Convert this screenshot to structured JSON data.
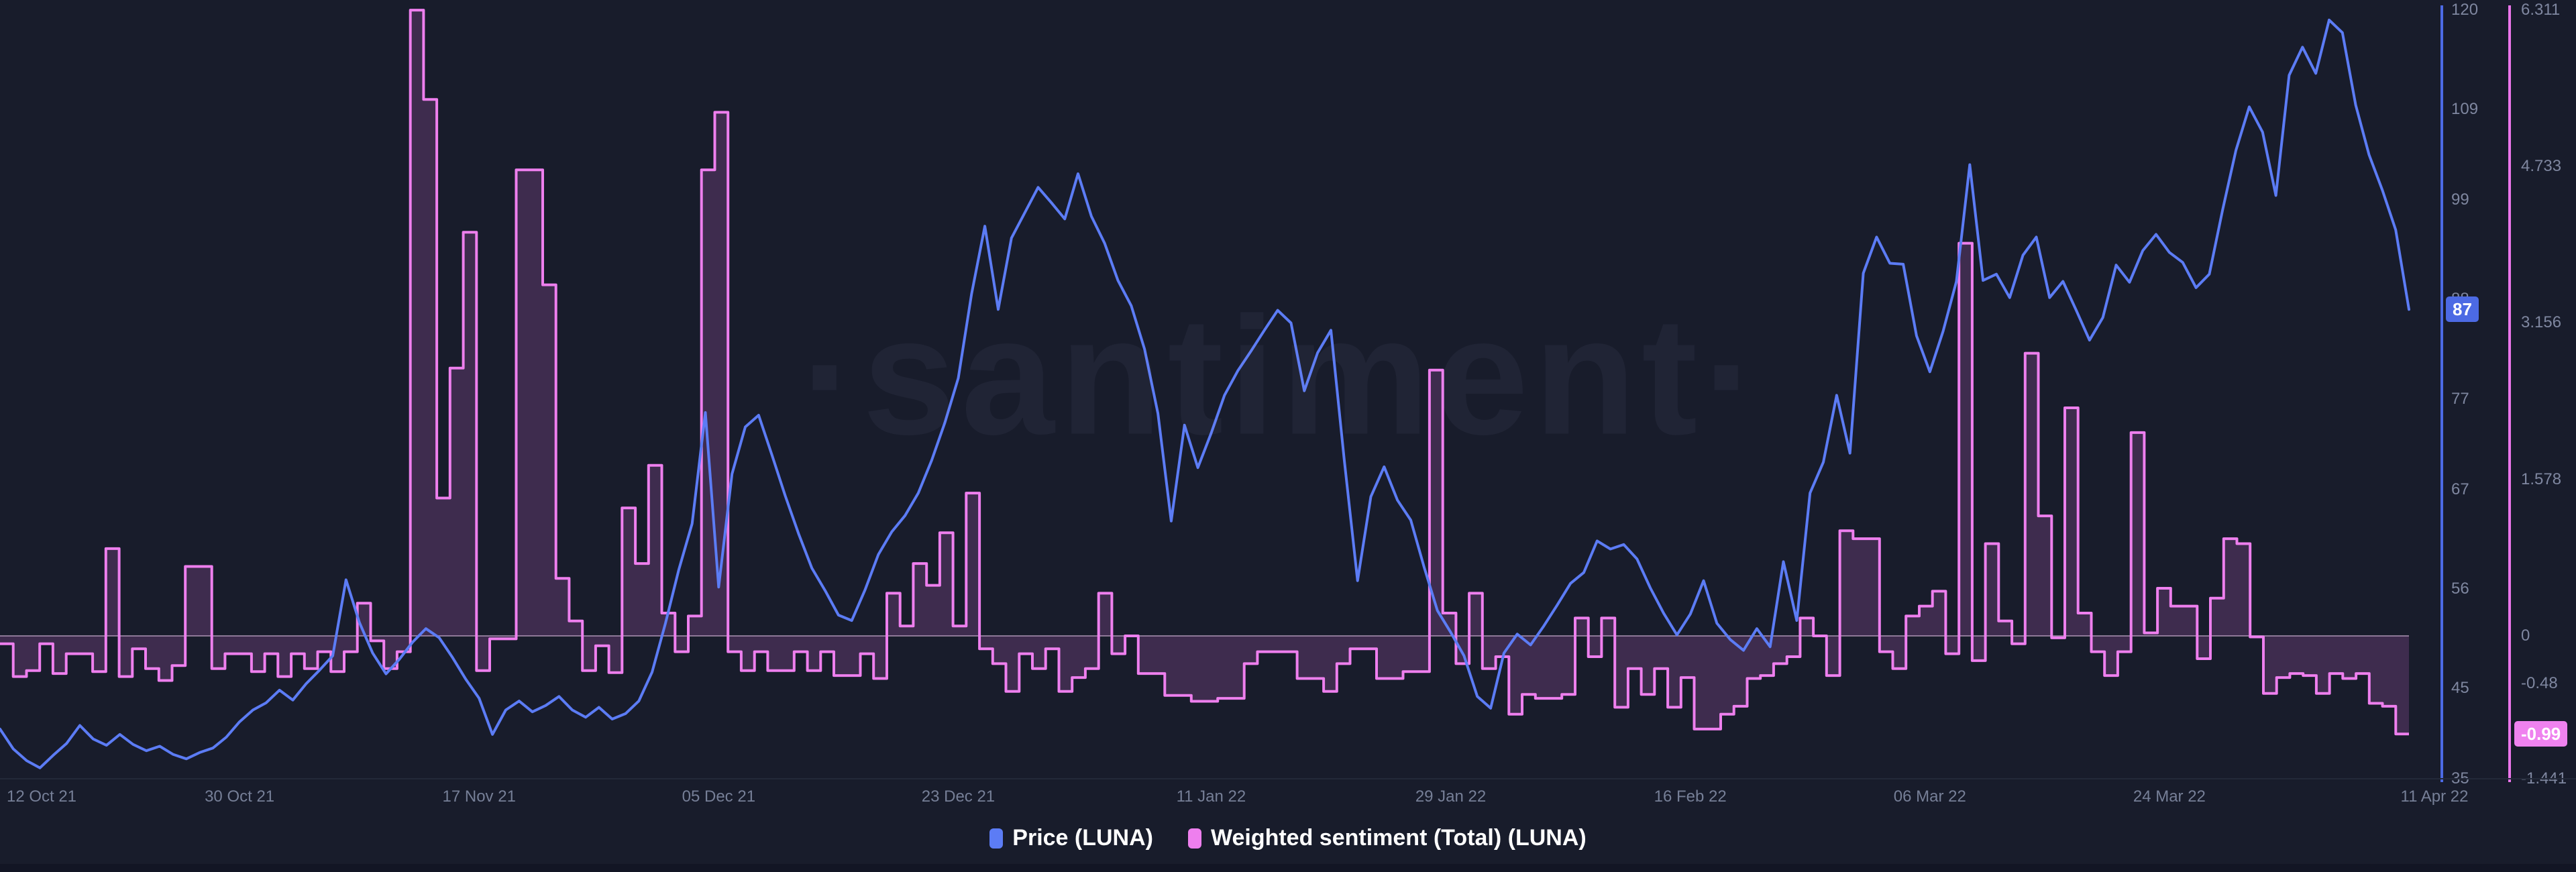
{
  "watermark": "·santiment·",
  "legend": {
    "price_label": "Price (LUNA)",
    "sentiment_label": "Weighted sentiment (Total) (LUNA)"
  },
  "colors": {
    "background": "#181c2b",
    "price_line": "#5c7cf5",
    "price_axis_line": "#4c6ae4",
    "price_badge_bg": "#4c6ae4",
    "sentiment_line": "#ee7fee",
    "sentiment_fill": "rgba(238,123,238,0.18)",
    "sentiment_zero_line": "rgba(237,203,240,0.5)",
    "sentiment_axis_line": "#ea75ea",
    "sentiment_badge_bg": "#ef82ef",
    "axis_text": "#7f87a0",
    "legend_text": "#ffffff"
  },
  "chart_data": {
    "type": "line",
    "title": "",
    "xlabel": "",
    "ylabel_right_1": "Price (LUNA)",
    "ylabel_right_2": "Weighted sentiment (Total) (LUNA)",
    "grid": "off",
    "legend_position": "bottom-center",
    "x_axis": {
      "kind": "time",
      "start": "12 Oct 21",
      "end": "11 Apr 22",
      "days_total": 181,
      "ticks": [
        {
          "label": "12 Oct 21",
          "day": 0,
          "align": "left"
        },
        {
          "label": "30 Oct 21",
          "day": 18
        },
        {
          "label": "17 Nov 21",
          "day": 36
        },
        {
          "label": "05 Dec 21",
          "day": 54
        },
        {
          "label": "23 Dec 21",
          "day": 72
        },
        {
          "label": "11 Jan 22",
          "day": 91
        },
        {
          "label": "29 Jan 22",
          "day": 109
        },
        {
          "label": "16 Feb 22",
          "day": 127
        },
        {
          "label": "06 Mar 22",
          "day": 145
        },
        {
          "label": "24 Mar 22",
          "day": 163
        },
        {
          "label": "11 Apr 22",
          "day": 181,
          "align": "right"
        }
      ]
    },
    "price_axis": {
      "min": 35,
      "max": 120,
      "ticks": [
        {
          "label": "120",
          "value": 120
        },
        {
          "label": "109",
          "value": 109
        },
        {
          "label": "99",
          "value": 99
        },
        {
          "label": "88",
          "value": 88
        },
        {
          "label": "77",
          "value": 77
        },
        {
          "label": "67",
          "value": 67
        },
        {
          "label": "56",
          "value": 56
        },
        {
          "label": "45",
          "value": 45
        },
        {
          "label": "35",
          "value": 35
        }
      ],
      "current": {
        "label": "87",
        "value": 86.9
      }
    },
    "sentiment_axis": {
      "min": -1.441,
      "max": 6.311,
      "ticks": [
        {
          "label": "6.311",
          "value": 6.311
        },
        {
          "label": "4.733",
          "value": 4.733
        },
        {
          "label": "3.156",
          "value": 3.156
        },
        {
          "label": "1.578",
          "value": 1.578
        },
        {
          "label": "0",
          "value": 0
        },
        {
          "label": "-0.48",
          "value": -0.48
        },
        {
          "label": "-1.441",
          "value": -1.441
        }
      ],
      "current": {
        "label": "-0.99",
        "value": -0.99
      }
    },
    "series": [
      {
        "name": "Price (LUNA)",
        "type": "line",
        "axis": "price",
        "color": "#5c7cf5",
        "values": [
          40.5,
          38.3,
          37.0,
          36.2,
          37.6,
          38.9,
          40.9,
          39.4,
          38.7,
          39.9,
          38.8,
          38.1,
          38.6,
          37.7,
          37.2,
          37.9,
          38.4,
          39.6,
          41.3,
          42.6,
          43.4,
          44.8,
          43.7,
          45.5,
          47.0,
          48.6,
          57.0,
          52.3,
          48.9,
          46.6,
          48.2,
          50.1,
          51.6,
          50.6,
          48.4,
          46.0,
          43.9,
          39.9,
          42.6,
          43.6,
          42.4,
          43.1,
          44.1,
          42.6,
          41.8,
          42.9,
          41.6,
          42.2,
          43.6,
          46.8,
          52.2,
          58.1,
          63.2,
          75.5,
          56.2,
          68.7,
          73.9,
          75.2,
          70.8,
          66.3,
          62.1,
          58.3,
          55.8,
          53.1,
          52.5,
          55.9,
          59.8,
          62.3,
          64.1,
          66.6,
          70.2,
          74.4,
          79.3,
          88.6,
          96.1,
          86.9,
          94.8,
          97.6,
          100.4,
          98.7,
          96.9,
          101.9,
          97.2,
          94.2,
          90.1,
          87.3,
          82.5,
          75.4,
          63.5,
          74.1,
          69.4,
          73.2,
          77.4,
          80.1,
          82.3,
          84.6,
          86.8,
          85.4,
          77.9,
          82.1,
          84.6,
          70.3,
          56.9,
          66.2,
          69.5,
          65.8,
          63.6,
          58.4,
          53.6,
          51.2,
          48.6,
          44.1,
          42.8,
          48.9,
          51.0,
          49.8,
          51.9,
          54.2,
          56.6,
          57.8,
          61.3,
          60.4,
          60.9,
          59.3,
          56.1,
          53.3,
          50.9,
          53.2,
          56.9,
          52.2,
          50.4,
          49.2,
          51.6,
          49.6,
          59.0,
          52.5,
          66.6,
          70.0,
          77.4,
          71.0,
          90.9,
          94.9,
          92.0,
          91.9,
          84.0,
          80.0,
          84.5,
          90.0,
          102.9,
          90.1,
          90.8,
          88.2,
          92.9,
          94.9,
          88.2,
          90.0,
          86.8,
          83.5,
          86.0,
          91.8,
          89.9,
          93.4,
          95.2,
          93.2,
          92.1,
          89.3,
          90.8,
          97.9,
          104.5,
          109.3,
          106.5,
          99.5,
          112.8,
          115.9,
          113.0,
          118.9,
          117.5,
          109.5,
          104.0,
          100.1,
          95.7,
          86.9
        ]
      },
      {
        "name": "Weighted sentiment (Total) (LUNA)",
        "type": "step-area",
        "axis": "sentiment",
        "color": "#ee7fee",
        "fill_color": "rgba(238,123,238,0.18)",
        "baseline": 0,
        "values": [
          -0.08,
          -0.41,
          -0.35,
          -0.08,
          -0.38,
          -0.18,
          -0.18,
          -0.36,
          0.88,
          -0.41,
          -0.13,
          -0.33,
          -0.45,
          -0.3,
          0.7,
          0.7,
          -0.33,
          -0.18,
          -0.18,
          -0.36,
          -0.18,
          -0.41,
          -0.18,
          -0.33,
          -0.16,
          -0.36,
          -0.16,
          0.33,
          -0.05,
          -0.33,
          -0.16,
          6.31,
          5.41,
          1.39,
          2.7,
          4.07,
          -0.35,
          -0.03,
          -0.03,
          4.7,
          4.7,
          3.54,
          0.58,
          0.15,
          -0.35,
          -0.1,
          -0.37,
          1.29,
          0.73,
          1.72,
          0.23,
          -0.16,
          0.2,
          4.7,
          5.28,
          -0.16,
          -0.35,
          -0.16,
          -0.35,
          -0.35,
          -0.16,
          -0.35,
          -0.16,
          -0.4,
          -0.4,
          -0.18,
          -0.43,
          0.43,
          0.1,
          0.73,
          0.51,
          1.04,
          0.1,
          1.44,
          -0.13,
          -0.28,
          -0.56,
          -0.18,
          -0.33,
          -0.13,
          -0.56,
          -0.42,
          -0.33,
          0.43,
          -0.18,
          0.0,
          -0.38,
          -0.38,
          -0.6,
          -0.6,
          -0.66,
          -0.66,
          -0.63,
          -0.63,
          -0.28,
          -0.16,
          -0.16,
          -0.16,
          -0.43,
          -0.43,
          -0.56,
          -0.28,
          -0.13,
          -0.13,
          -0.43,
          -0.43,
          -0.36,
          -0.36,
          2.68,
          0.23,
          -0.28,
          0.43,
          -0.33,
          -0.21,
          -0.79,
          -0.59,
          -0.63,
          -0.63,
          -0.59,
          0.18,
          -0.21,
          0.18,
          -0.72,
          -0.33,
          -0.59,
          -0.33,
          -0.72,
          -0.42,
          -0.94,
          -0.94,
          -0.79,
          -0.71,
          -0.43,
          -0.4,
          -0.28,
          -0.21,
          0.18,
          0.0,
          -0.4,
          1.06,
          0.98,
          0.98,
          -0.16,
          -0.33,
          0.2,
          0.3,
          0.45,
          -0.18,
          3.96,
          -0.25,
          0.93,
          0.15,
          -0.08,
          2.85,
          1.21,
          -0.02,
          2.3,
          0.23,
          -0.16,
          -0.4,
          -0.16,
          2.05,
          0.03,
          0.48,
          0.3,
          0.3,
          -0.23,
          0.38,
          0.98,
          0.93,
          -0.01,
          -0.58,
          -0.42,
          -0.38,
          -0.4,
          -0.58,
          -0.38,
          -0.43,
          -0.38,
          -0.68,
          -0.71,
          -0.99
        ]
      }
    ]
  }
}
